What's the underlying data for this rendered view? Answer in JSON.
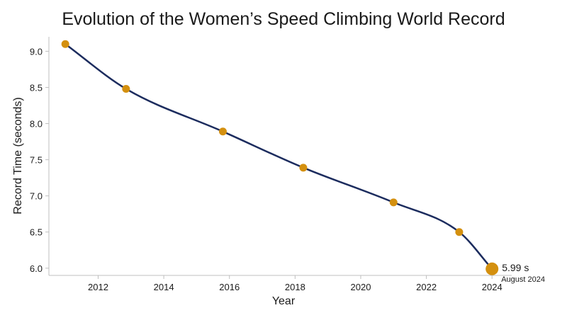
{
  "chart_data": {
    "type": "line",
    "title": "Evolution of the Women’s Speed Climbing World Record",
    "xlabel": "Year",
    "ylabel": "Record Time (seconds)",
    "x_ticks": [
      2012,
      2014,
      2016,
      2018,
      2020,
      2022,
      2024
    ],
    "y_ticks": [
      "6.0",
      "6.5",
      "7.0",
      "7.5",
      "8.0",
      "8.5",
      "9.0"
    ],
    "xlim": [
      2010.5,
      2024.6
    ],
    "ylim": [
      5.9,
      9.2
    ],
    "grid": false,
    "x": [
      2011.0,
      2012.85,
      2015.8,
      2018.25,
      2021.0,
      2023.0,
      2024.0
    ],
    "y": [
      9.1,
      8.48,
      7.89,
      7.39,
      6.91,
      6.5,
      5.99
    ],
    "line_color": "#1c2c5e",
    "marker_color": "#d4900f",
    "highlight": {
      "value_label": "5.99 s",
      "date_label": "August 2024"
    }
  }
}
